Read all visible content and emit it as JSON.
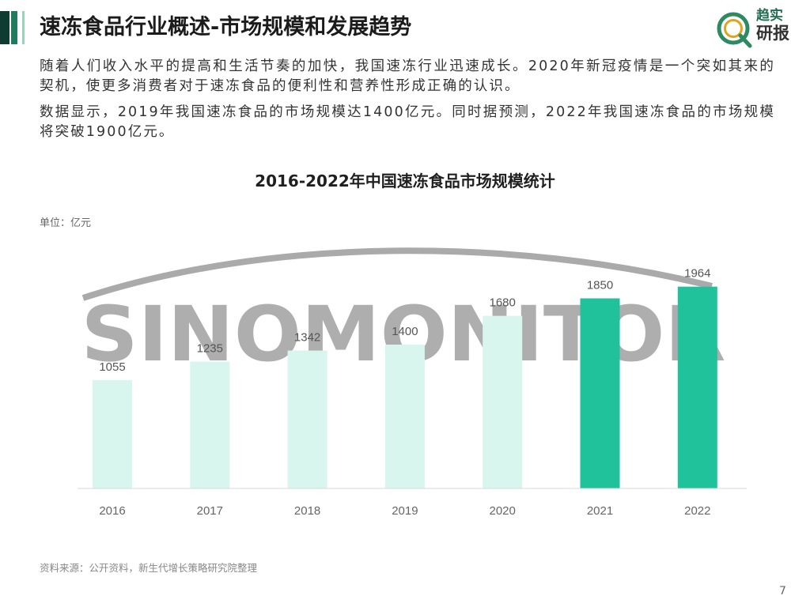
{
  "header": {
    "title": "速冻食品行业概述-市场规模和发展趋势",
    "logo_line1": "趋实",
    "logo_line2": "研报"
  },
  "intro": {
    "paragraph1": "随着人们收入水平的提高和生活节奏的加快，我国速冻行业迅速成长。2020年新冠疫情是一个突如其来的契机，使更多消费者对于速冻食品的便利性和营养性形成正确的认识。",
    "paragraph2": "数据显示，2019年我国速冻食品的市场规模达1400亿元。同时据预测，2022年我国速冻食品的市场规模将突破1900亿元。"
  },
  "watermark": "SINOMONITOR",
  "chart_data": {
    "type": "bar",
    "title": "2016-2022年中国速冻食品市场规模统计",
    "unit_label": "单位：亿元",
    "categories": [
      "2016",
      "2017",
      "2018",
      "2019",
      "2020",
      "2021",
      "2022"
    ],
    "values": [
      1055,
      1235,
      1342,
      1400,
      1680,
      1850,
      1964
    ],
    "colors": [
      "#d8f5ee",
      "#d8f5ee",
      "#d8f5ee",
      "#d8f5ee",
      "#d8f5ee",
      "#1fc29b",
      "#1fc29b"
    ],
    "ylim": [
      0,
      2200
    ],
    "grid": false,
    "legend": "none"
  },
  "footer": {
    "source": "资料来源：公开资料，新生代增长策略研究院整理",
    "page_number": "7"
  },
  "theme": {
    "accent_dark": "#0e3b32",
    "accent_mid": "#1f7a5e",
    "accent_light": "#9ad3bd",
    "bar_light": "#d8f5ee",
    "bar_highlight": "#1fc29b"
  }
}
